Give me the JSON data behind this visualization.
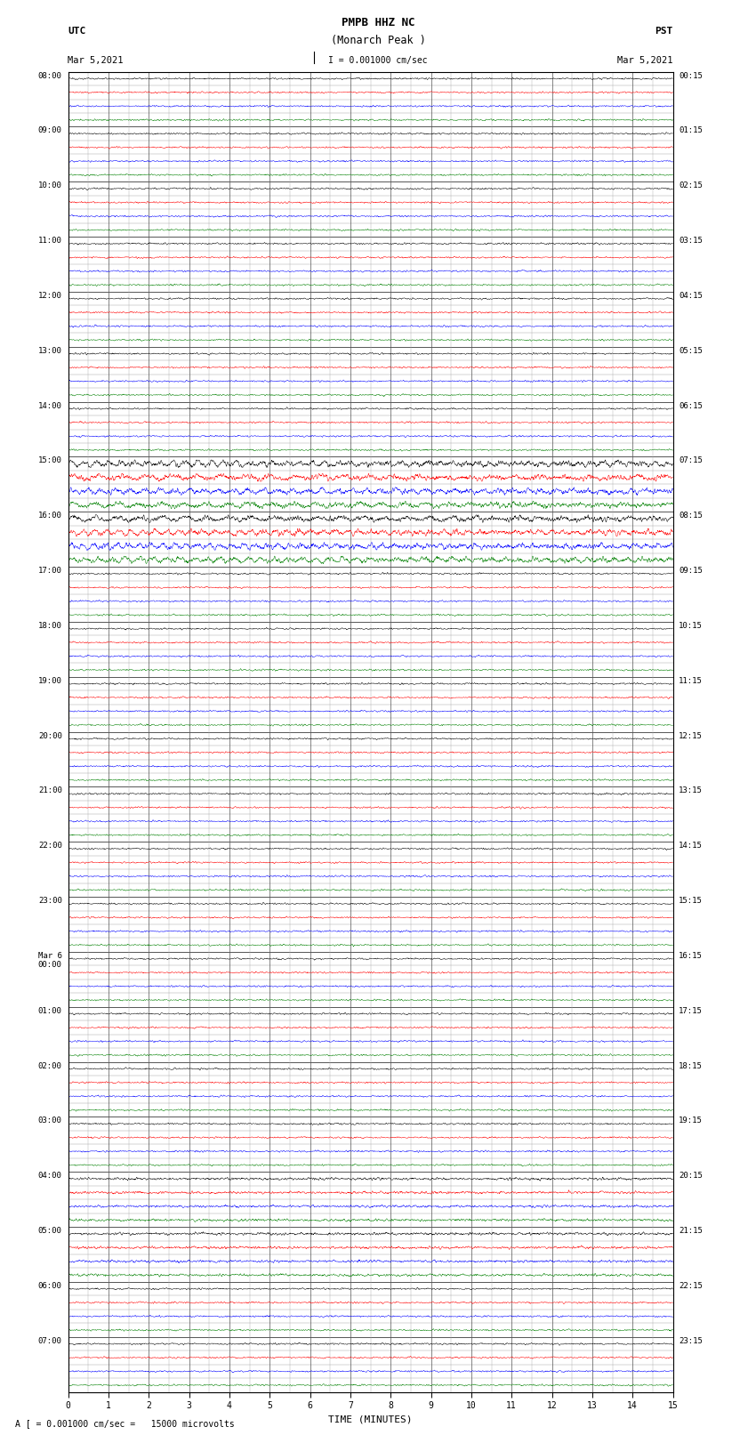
{
  "title_line1": "PMPB HHZ NC",
  "title_line2": "(Monarch Peak )",
  "scale_label": "I = 0.001000 cm/sec",
  "bottom_label": "A [ = 0.001000 cm/sec =   15000 microvolts",
  "xlabel": "TIME (MINUTES)",
  "utc_hour_labels": [
    "08:00",
    "09:00",
    "10:00",
    "11:00",
    "12:00",
    "13:00",
    "14:00",
    "15:00",
    "16:00",
    "17:00",
    "18:00",
    "19:00",
    "20:00",
    "21:00",
    "22:00",
    "23:00",
    "Mar 6\n00:00",
    "01:00",
    "02:00",
    "03:00",
    "04:00",
    "05:00",
    "06:00",
    "07:00"
  ],
  "pst_hour_labels": [
    "00:15",
    "01:15",
    "02:15",
    "03:15",
    "04:15",
    "05:15",
    "06:15",
    "07:15",
    "08:15",
    "09:15",
    "10:15",
    "11:15",
    "12:15",
    "13:15",
    "14:15",
    "15:15",
    "16:15",
    "17:15",
    "18:15",
    "19:15",
    "20:15",
    "21:15",
    "22:15",
    "23:15"
  ],
  "traces_per_hour": 4,
  "num_hours": 24,
  "trace_colors": [
    "black",
    "red",
    "blue",
    "green"
  ],
  "xmin": 0,
  "xmax": 15,
  "background_color": "white",
  "grid_color": "#aaaaaa",
  "major_grid_color": "#555555",
  "fig_width": 8.5,
  "fig_height": 16.13,
  "trace_amplitude": 0.28,
  "noise_std": 0.06
}
